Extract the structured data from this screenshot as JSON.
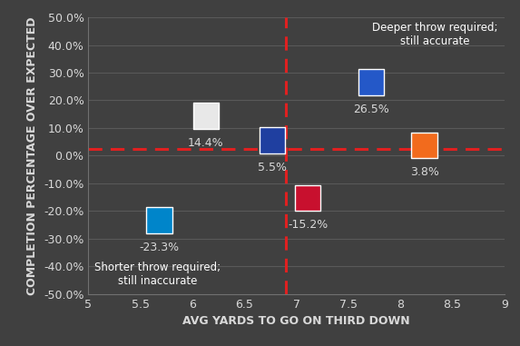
{
  "chart_data": {
    "type": "scatter",
    "x_label": "AVG YARDS TO GO ON THIRD DOWN",
    "y_label": "COMPLETION PERCENTAGE OVER EXPECTED",
    "x": [
      6.13,
      6.77,
      7.72,
      8.23,
      7.11,
      5.68
    ],
    "values": [
      14.4,
      5.5,
      26.5,
      3.8,
      -15.2,
      -23.3
    ],
    "value_labels": [
      "14.4%",
      "5.5%",
      "26.5%",
      "3.8%",
      "-15.2%",
      "-23.3%"
    ],
    "data_labels": true,
    "colors": [
      "#e8e8e8",
      "#1f3fa0",
      "#2458c8",
      "#f26b1d",
      "#c8102e",
      "#0085ca"
    ],
    "marker": "square",
    "xlim": [
      5,
      9
    ],
    "xticks": [
      5,
      5.5,
      6,
      6.5,
      7,
      7.5,
      8,
      8.5,
      9
    ],
    "ylim": [
      -50,
      50
    ],
    "yticks": [
      {
        "value": -50,
        "label": "-50.0%"
      },
      {
        "value": -40,
        "label": "-40.0%"
      },
      {
        "value": -30,
        "label": "-30.0%"
      },
      {
        "value": -20,
        "label": "-20.0%"
      },
      {
        "value": -10,
        "label": "-10.0%"
      },
      {
        "value": 0,
        "label": "0.0%"
      },
      {
        "value": 10,
        "label": "10.0%"
      },
      {
        "value": 20,
        "label": "20.0%"
      },
      {
        "value": 30,
        "label": "30.0%"
      },
      {
        "value": 40,
        "label": "40.0%"
      },
      {
        "value": 50,
        "label": "50.0%"
      }
    ],
    "grid": true,
    "reference_lines": {
      "x": 6.9,
      "y": 2.5,
      "color": "#e02020"
    },
    "annotations": [
      "Deeper throw required;\nstill accurate",
      "Shorter throw required;\nstill inaccurate"
    ]
  }
}
